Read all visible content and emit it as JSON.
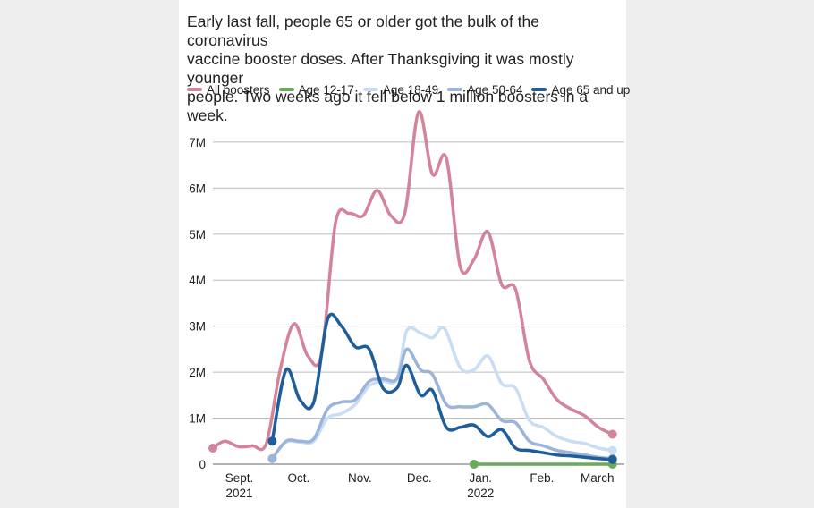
{
  "subtitle": "Early last fall, people 65 or older got the bulk of the coronavirus\nvaccine booster doses. After Thanksgiving it was mostly younger\npeople. Two weeks ago it fell below 1 million boosters in a week.",
  "chart_data": {
    "type": "line",
    "xlabel": "",
    "ylabel": "",
    "x_tick_labels": [
      {
        "label": "Sept.",
        "sub": "2021",
        "date": "2021-09-01"
      },
      {
        "label": "Oct.",
        "sub": "",
        "date": "2021-10-01"
      },
      {
        "label": "Nov.",
        "sub": "",
        "date": "2021-11-01"
      },
      {
        "label": "Dec.",
        "sub": "",
        "date": "2021-12-01"
      },
      {
        "label": "Jan.",
        "sub": "2022",
        "date": "2022-01-01"
      },
      {
        "label": "Feb.",
        "sub": "",
        "date": "2022-02-01"
      },
      {
        "label": "March",
        "sub": "",
        "date": "2022-03-01"
      }
    ],
    "y_ticks": [
      {
        "value": 0,
        "label": "0"
      },
      {
        "value": 1000000,
        "label": "1M"
      },
      {
        "value": 2000000,
        "label": "2M"
      },
      {
        "value": 3000000,
        "label": "3M"
      },
      {
        "value": 4000000,
        "label": "4M"
      },
      {
        "value": 5000000,
        "label": "5M"
      },
      {
        "value": 6000000,
        "label": "6M"
      },
      {
        "value": 7000000,
        "label": "7M"
      }
    ],
    "xlim": [
      "2021-08-25",
      "2022-03-21"
    ],
    "ylim": [
      0,
      7600000
    ],
    "grid": true,
    "legend_position": "top",
    "series": [
      {
        "name": "All boosters",
        "color": "#d4849a",
        "points": [
          [
            "2021-08-25",
            350000
          ],
          [
            "2021-08-31",
            500000
          ],
          [
            "2021-09-07",
            380000
          ],
          [
            "2021-09-14",
            400000
          ],
          [
            "2021-09-21",
            450000
          ],
          [
            "2021-09-28",
            2050000
          ],
          [
            "2021-10-05",
            3050000
          ],
          [
            "2021-10-12",
            2350000
          ],
          [
            "2021-10-19",
            2400000
          ],
          [
            "2021-10-26",
            5250000
          ],
          [
            "2021-11-02",
            5450000
          ],
          [
            "2021-11-09",
            5400000
          ],
          [
            "2021-11-16",
            5950000
          ],
          [
            "2021-11-23",
            5400000
          ],
          [
            "2021-11-30",
            5450000
          ],
          [
            "2021-12-07",
            7650000
          ],
          [
            "2021-12-14",
            6300000
          ],
          [
            "2021-12-21",
            6650000
          ],
          [
            "2021-12-28",
            4300000
          ],
          [
            "2022-01-04",
            4450000
          ],
          [
            "2022-01-11",
            5050000
          ],
          [
            "2022-01-18",
            3900000
          ],
          [
            "2022-01-25",
            3800000
          ],
          [
            "2022-02-01",
            2250000
          ],
          [
            "2022-02-08",
            1850000
          ],
          [
            "2022-02-15",
            1400000
          ],
          [
            "2022-02-22",
            1200000
          ],
          [
            "2022-03-01",
            1050000
          ],
          [
            "2022-03-08",
            800000
          ],
          [
            "2022-03-15",
            650000
          ]
        ]
      },
      {
        "name": "Age 12-17",
        "color": "#6aaa5c",
        "points": [
          [
            "2022-01-04",
            0
          ],
          [
            "2022-01-11",
            0
          ],
          [
            "2022-01-18",
            0
          ],
          [
            "2022-01-25",
            0
          ],
          [
            "2022-02-01",
            0
          ],
          [
            "2022-02-08",
            0
          ],
          [
            "2022-02-15",
            0
          ],
          [
            "2022-02-22",
            0
          ],
          [
            "2022-03-01",
            0
          ],
          [
            "2022-03-08",
            0
          ],
          [
            "2022-03-15",
            0
          ]
        ]
      },
      {
        "name": "Age 18-49",
        "color": "#c9def2",
        "points": [
          [
            "2021-09-24",
            120000
          ],
          [
            "2021-10-01",
            480000
          ],
          [
            "2021-10-08",
            480000
          ],
          [
            "2021-10-15",
            500000
          ],
          [
            "2021-10-22",
            1000000
          ],
          [
            "2021-10-29",
            1100000
          ],
          [
            "2021-11-05",
            1300000
          ],
          [
            "2021-11-12",
            1700000
          ],
          [
            "2021-11-19",
            1800000
          ],
          [
            "2021-11-26",
            1850000
          ],
          [
            "2021-12-01",
            2900000
          ],
          [
            "2021-12-08",
            2850000
          ],
          [
            "2021-12-14",
            2750000
          ],
          [
            "2021-12-20",
            2950000
          ],
          [
            "2021-12-28",
            2100000
          ],
          [
            "2022-01-04",
            2050000
          ],
          [
            "2022-01-11",
            2350000
          ],
          [
            "2022-01-18",
            1750000
          ],
          [
            "2022-01-25",
            1650000
          ],
          [
            "2022-02-01",
            950000
          ],
          [
            "2022-02-08",
            800000
          ],
          [
            "2022-02-15",
            600000
          ],
          [
            "2022-02-22",
            500000
          ],
          [
            "2022-03-01",
            450000
          ],
          [
            "2022-03-08",
            350000
          ],
          [
            "2022-03-15",
            300000
          ]
        ]
      },
      {
        "name": "Age 50-64",
        "color": "#9cb4db",
        "points": [
          [
            "2021-09-24",
            120000
          ],
          [
            "2021-10-01",
            500000
          ],
          [
            "2021-10-08",
            500000
          ],
          [
            "2021-10-15",
            550000
          ],
          [
            "2021-10-22",
            1200000
          ],
          [
            "2021-10-29",
            1350000
          ],
          [
            "2021-11-05",
            1400000
          ],
          [
            "2021-11-12",
            1800000
          ],
          [
            "2021-11-19",
            1850000
          ],
          [
            "2021-11-26",
            1850000
          ],
          [
            "2021-12-01",
            2500000
          ],
          [
            "2021-12-08",
            2050000
          ],
          [
            "2021-12-14",
            1950000
          ],
          [
            "2021-12-21",
            1300000
          ],
          [
            "2021-12-28",
            1250000
          ],
          [
            "2022-01-04",
            1250000
          ],
          [
            "2022-01-11",
            1300000
          ],
          [
            "2022-01-18",
            950000
          ],
          [
            "2022-01-25",
            900000
          ],
          [
            "2022-02-01",
            500000
          ],
          [
            "2022-02-08",
            400000
          ],
          [
            "2022-02-15",
            300000
          ],
          [
            "2022-02-22",
            250000
          ],
          [
            "2022-03-01",
            200000
          ],
          [
            "2022-03-08",
            150000
          ],
          [
            "2022-03-15",
            120000
          ]
        ]
      },
      {
        "name": "Age 65 and up",
        "color": "#1d5e9b",
        "points": [
          [
            "2021-09-24",
            500000
          ],
          [
            "2021-10-01",
            2050000
          ],
          [
            "2021-10-08",
            1400000
          ],
          [
            "2021-10-15",
            1350000
          ],
          [
            "2021-10-22",
            3150000
          ],
          [
            "2021-10-29",
            3000000
          ],
          [
            "2021-11-05",
            2550000
          ],
          [
            "2021-11-12",
            2500000
          ],
          [
            "2021-11-19",
            1650000
          ],
          [
            "2021-11-26",
            1650000
          ],
          [
            "2021-12-01",
            2150000
          ],
          [
            "2021-12-08",
            1500000
          ],
          [
            "2021-12-14",
            1600000
          ],
          [
            "2021-12-21",
            800000
          ],
          [
            "2021-12-28",
            800000
          ],
          [
            "2022-01-04",
            850000
          ],
          [
            "2022-01-11",
            600000
          ],
          [
            "2022-01-18",
            750000
          ],
          [
            "2022-01-25",
            350000
          ],
          [
            "2022-02-01",
            300000
          ],
          [
            "2022-02-08",
            250000
          ],
          [
            "2022-02-15",
            200000
          ],
          [
            "2022-02-22",
            180000
          ],
          [
            "2022-03-01",
            150000
          ],
          [
            "2022-03-08",
            120000
          ],
          [
            "2022-03-15",
            100000
          ]
        ]
      }
    ]
  }
}
